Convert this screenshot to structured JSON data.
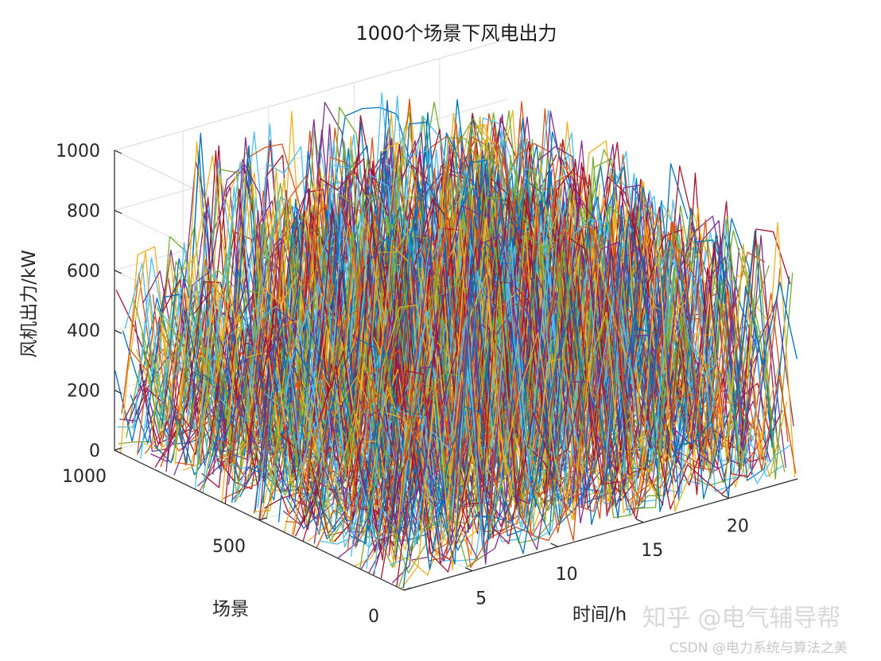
{
  "chart_data": {
    "type": "line",
    "view": "3d",
    "title": "1000个场景下风电出力",
    "xlabel": "时间/h",
    "ylabel": "场景",
    "zlabel": "风机出力/kW",
    "xlim": [
      1,
      24
    ],
    "ylim": [
      0,
      1000
    ],
    "zlim": [
      0,
      1000
    ],
    "xticks": [
      "5",
      "10",
      "15",
      "20"
    ],
    "yticks": [
      "0",
      "500",
      "1000"
    ],
    "zticks": [
      "0",
      "200",
      "400",
      "600",
      "800",
      "1000"
    ],
    "grid": true,
    "series_count": 1000,
    "series_colors": [
      "#0072BD",
      "#D95319",
      "#EDB120",
      "#7E2F8E",
      "#77AC30",
      "#4DBEEE",
      "#A2142F"
    ],
    "hourly_output_envelope": {
      "hours": [
        1,
        2,
        3,
        4,
        5,
        6,
        7,
        8,
        9,
        10,
        11,
        12,
        13,
        14,
        15,
        16,
        17,
        18,
        19,
        20,
        21,
        22,
        23,
        24
      ],
      "typical_max": [
        600,
        700,
        700,
        680,
        1000,
        1000,
        1000,
        990,
        1000,
        1000,
        1000,
        980,
        1000,
        980,
        960,
        1000,
        940,
        920,
        900,
        900,
        880,
        860,
        900,
        700
      ],
      "typical_min": [
        0,
        0,
        0,
        0,
        0,
        0,
        0,
        0,
        0,
        0,
        0,
        0,
        0,
        0,
        0,
        0,
        0,
        0,
        0,
        0,
        0,
        0,
        0,
        0
      ]
    }
  },
  "watermark": {
    "zhihu": "知乎 @电气辅导帮",
    "csdn": "CSDN @电力系统与算法之美"
  }
}
